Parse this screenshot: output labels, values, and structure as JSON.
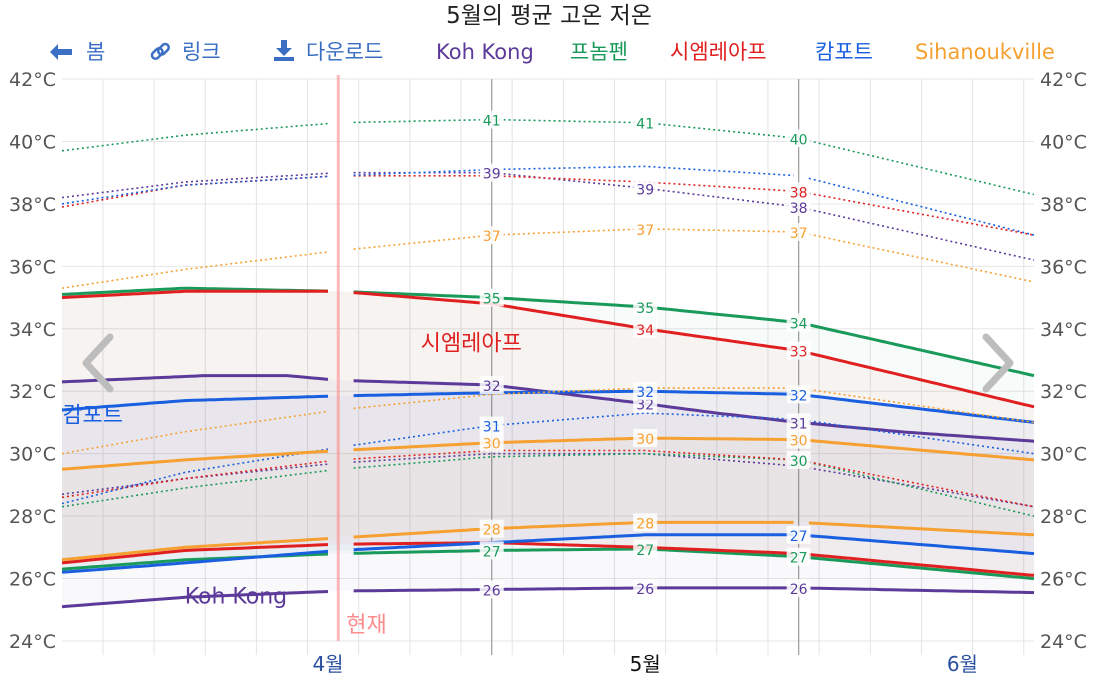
{
  "chart_data": {
    "type": "line",
    "title": "5월의 평균 고온 저온",
    "toolbar": [
      {
        "icon": "arrow-left-icon",
        "label": "봄",
        "color": "#3a6fc4"
      },
      {
        "icon": "link-icon",
        "label": "링크",
        "color": "#3a6fc4"
      },
      {
        "icon": "download-icon",
        "label": "다운로드",
        "color": "#3a6fc4"
      }
    ],
    "ylim": [
      24,
      42
    ],
    "yticks": [
      "24°C",
      "26°C",
      "28°C",
      "30°C",
      "32°C",
      "34°C",
      "36°C",
      "38°C",
      "40°C",
      "42°C"
    ],
    "yvalues": [
      24,
      26,
      28,
      30,
      32,
      34,
      36,
      38,
      40,
      42
    ],
    "x_range_days": [
      -42,
      53
    ],
    "month_labels": [
      {
        "label": "4월",
        "day": -16,
        "color": "#2a4fa0"
      },
      {
        "label": "5월",
        "day": 15,
        "color": "#111111"
      },
      {
        "label": "6월",
        "day": 46,
        "color": "#2a4fa0"
      }
    ],
    "now_label": "현재",
    "now_day": -15,
    "cities": [
      {
        "name": "Koh Kong",
        "color": "#5b3a9a",
        "high": {
          "x": [
            -42,
            -28,
            -20,
            -15,
            -10,
            0,
            15,
            22,
            30,
            40,
            53
          ],
          "y": [
            32.3,
            32.5,
            32.5,
            32.35,
            32.3,
            32.2,
            31.6,
            31.3,
            31.0,
            30.7,
            30.4
          ]
        },
        "low": {
          "x": [
            -42,
            -30,
            -15,
            0,
            15,
            30,
            53
          ],
          "y": [
            25.1,
            25.4,
            25.6,
            25.65,
            25.7,
            25.7,
            25.55
          ]
        },
        "rhigh": {
          "x": [
            -42,
            -30,
            -15,
            0,
            15,
            30,
            53
          ],
          "y": [
            38.2,
            38.7,
            39.0,
            39.0,
            38.5,
            37.9,
            36.2
          ]
        },
        "rlow": {
          "x": [
            -42,
            -30,
            -15,
            0,
            15,
            30,
            53
          ],
          "y": [
            28.7,
            29.2,
            29.7,
            30.0,
            30.0,
            29.6,
            28.3
          ]
        },
        "labels": [
          {
            "day": 0,
            "series": "high",
            "text": "32"
          },
          {
            "day": 15,
            "series": "high",
            "text": "32"
          },
          {
            "day": 30,
            "series": "high",
            "text": "31"
          },
          {
            "day": 0,
            "series": "low",
            "text": "26"
          },
          {
            "day": 15,
            "series": "low",
            "text": "26"
          },
          {
            "day": 30,
            "series": "low",
            "text": "26"
          },
          {
            "day": 0,
            "series": "rhigh",
            "text": "39"
          },
          {
            "day": 15,
            "series": "rhigh",
            "text": "39"
          },
          {
            "day": 30,
            "series": "rhigh",
            "text": "38"
          }
        ]
      },
      {
        "name": "프놈펜",
        "color": "#1a9a5a",
        "high": {
          "x": [
            -42,
            -30,
            -15,
            0,
            15,
            30,
            53
          ],
          "y": [
            35.1,
            35.3,
            35.2,
            35.0,
            34.7,
            34.2,
            32.5
          ]
        },
        "low": {
          "x": [
            -42,
            -30,
            -15,
            0,
            15,
            30,
            53
          ],
          "y": [
            26.3,
            26.6,
            26.8,
            26.9,
            26.95,
            26.7,
            26.0
          ]
        },
        "rhigh": {
          "x": [
            -42,
            -30,
            -15,
            0,
            15,
            30,
            53
          ],
          "y": [
            39.7,
            40.2,
            40.6,
            40.7,
            40.6,
            40.1,
            38.3
          ]
        },
        "rlow": {
          "x": [
            -42,
            -30,
            -15,
            0,
            15,
            30,
            53
          ],
          "y": [
            28.3,
            28.9,
            29.5,
            29.9,
            30.0,
            29.8,
            28.0
          ]
        },
        "labels": [
          {
            "day": 0,
            "series": "high",
            "text": "35"
          },
          {
            "day": 15,
            "series": "high",
            "text": "35"
          },
          {
            "day": 30,
            "series": "high",
            "text": "34"
          },
          {
            "day": 0,
            "series": "low",
            "text": "27"
          },
          {
            "day": 15,
            "series": "low",
            "text": "27"
          },
          {
            "day": 30,
            "series": "low",
            "text": "27"
          },
          {
            "day": 0,
            "series": "rhigh",
            "text": "41"
          },
          {
            "day": 15,
            "series": "rhigh",
            "text": "41"
          },
          {
            "day": 30,
            "series": "rhigh",
            "text": "40"
          },
          {
            "day": 30,
            "series": "rlow",
            "text": "30"
          }
        ]
      },
      {
        "name": "시엠레아프",
        "color": "#e02020",
        "high": {
          "x": [
            -42,
            -30,
            -15,
            0,
            15,
            30,
            53
          ],
          "y": [
            35.0,
            35.2,
            35.2,
            34.8,
            34.0,
            33.3,
            31.5
          ]
        },
        "low": {
          "x": [
            -42,
            -30,
            -15,
            0,
            15,
            30,
            53
          ],
          "y": [
            26.5,
            26.9,
            27.1,
            27.15,
            27.0,
            26.8,
            26.1
          ]
        },
        "rhigh": {
          "x": [
            -42,
            -30,
            -15,
            0,
            15,
            30,
            53
          ],
          "y": [
            37.9,
            38.6,
            38.9,
            38.9,
            38.7,
            38.4,
            37.0
          ]
        },
        "rlow": {
          "x": [
            -42,
            -30,
            -15,
            0,
            15,
            30,
            53
          ],
          "y": [
            28.6,
            29.2,
            29.8,
            30.1,
            30.1,
            29.8,
            28.3
          ]
        },
        "labels": [
          {
            "day": 15,
            "series": "high",
            "text": "34"
          },
          {
            "day": 30,
            "series": "high",
            "text": "33"
          },
          {
            "day": 30,
            "series": "rhigh",
            "text": "38"
          }
        ]
      },
      {
        "name": "캄포트",
        "color": "#1a5fe0",
        "high": {
          "x": [
            -42,
            -30,
            -15,
            0,
            15,
            30,
            53
          ],
          "y": [
            31.4,
            31.7,
            31.85,
            31.95,
            32.0,
            31.9,
            31.0
          ]
        },
        "low": {
          "x": [
            -42,
            -30,
            -15,
            0,
            15,
            30,
            53
          ],
          "y": [
            26.2,
            26.5,
            26.9,
            27.15,
            27.4,
            27.4,
            26.8
          ]
        },
        "rhigh": {
          "x": [
            -42,
            -30,
            -15,
            0,
            15,
            30,
            53
          ],
          "y": [
            38.0,
            38.6,
            38.9,
            39.1,
            39.2,
            38.9,
            37.0
          ]
        },
        "rlow": {
          "x": [
            -42,
            -30,
            -15,
            0,
            15,
            30,
            53
          ],
          "y": [
            28.4,
            29.4,
            30.2,
            30.9,
            31.3,
            31.1,
            30.0
          ]
        },
        "labels": [
          {
            "day": 0,
            "series": "rlow",
            "text": "31"
          },
          {
            "day": 15,
            "series": "high",
            "text": "32"
          },
          {
            "day": 30,
            "series": "high",
            "text": "32"
          },
          {
            "day": 30,
            "series": "low",
            "text": "27"
          }
        ]
      },
      {
        "name": "Sihanoukville",
        "color": "#f5a030",
        "high": {
          "x": [
            -42,
            -30,
            -15,
            0,
            15,
            30,
            53
          ],
          "y": [
            29.5,
            29.8,
            30.1,
            30.35,
            30.5,
            30.45,
            29.8
          ]
        },
        "low": {
          "x": [
            -42,
            -30,
            -15,
            0,
            15,
            30,
            53
          ],
          "y": [
            26.6,
            27.0,
            27.3,
            27.6,
            27.8,
            27.8,
            27.4
          ]
        },
        "rhigh": {
          "x": [
            -42,
            -30,
            -15,
            0,
            15,
            30,
            53
          ],
          "y": [
            35.3,
            35.9,
            36.5,
            37.0,
            37.2,
            37.1,
            35.5
          ]
        },
        "rlow": {
          "x": [
            -42,
            -30,
            -15,
            0,
            15,
            30,
            53
          ],
          "y": [
            30.0,
            30.7,
            31.4,
            31.9,
            32.1,
            32.1,
            31.0
          ]
        },
        "labels": [
          {
            "day": 0,
            "series": "high",
            "text": "30"
          },
          {
            "day": 15,
            "series": "high",
            "text": "30"
          },
          {
            "day": 30,
            "series": "high",
            "text": "30"
          },
          {
            "day": 0,
            "series": "low",
            "text": "28"
          },
          {
            "day": 15,
            "series": "low",
            "text": "28"
          },
          {
            "day": 0,
            "series": "rhigh",
            "text": "37"
          },
          {
            "day": 15,
            "series": "rhigh",
            "text": "37"
          },
          {
            "day": 30,
            "series": "rhigh",
            "text": "37"
          }
        ]
      }
    ],
    "inline_labels": [
      {
        "text": "시엠레아프",
        "day": -2,
        "y": 33.3,
        "color": "#e02020"
      },
      {
        "text": "캄포트",
        "day": -39,
        "y": 31.0,
        "color": "#1a5fe0"
      },
      {
        "text": "Koh Kong",
        "day": -25,
        "y": 25.2,
        "color": "#5b3a9a"
      }
    ],
    "nav": {
      "prev_icon": "chevron-left-icon",
      "next_icon": "chevron-right-icon"
    }
  }
}
